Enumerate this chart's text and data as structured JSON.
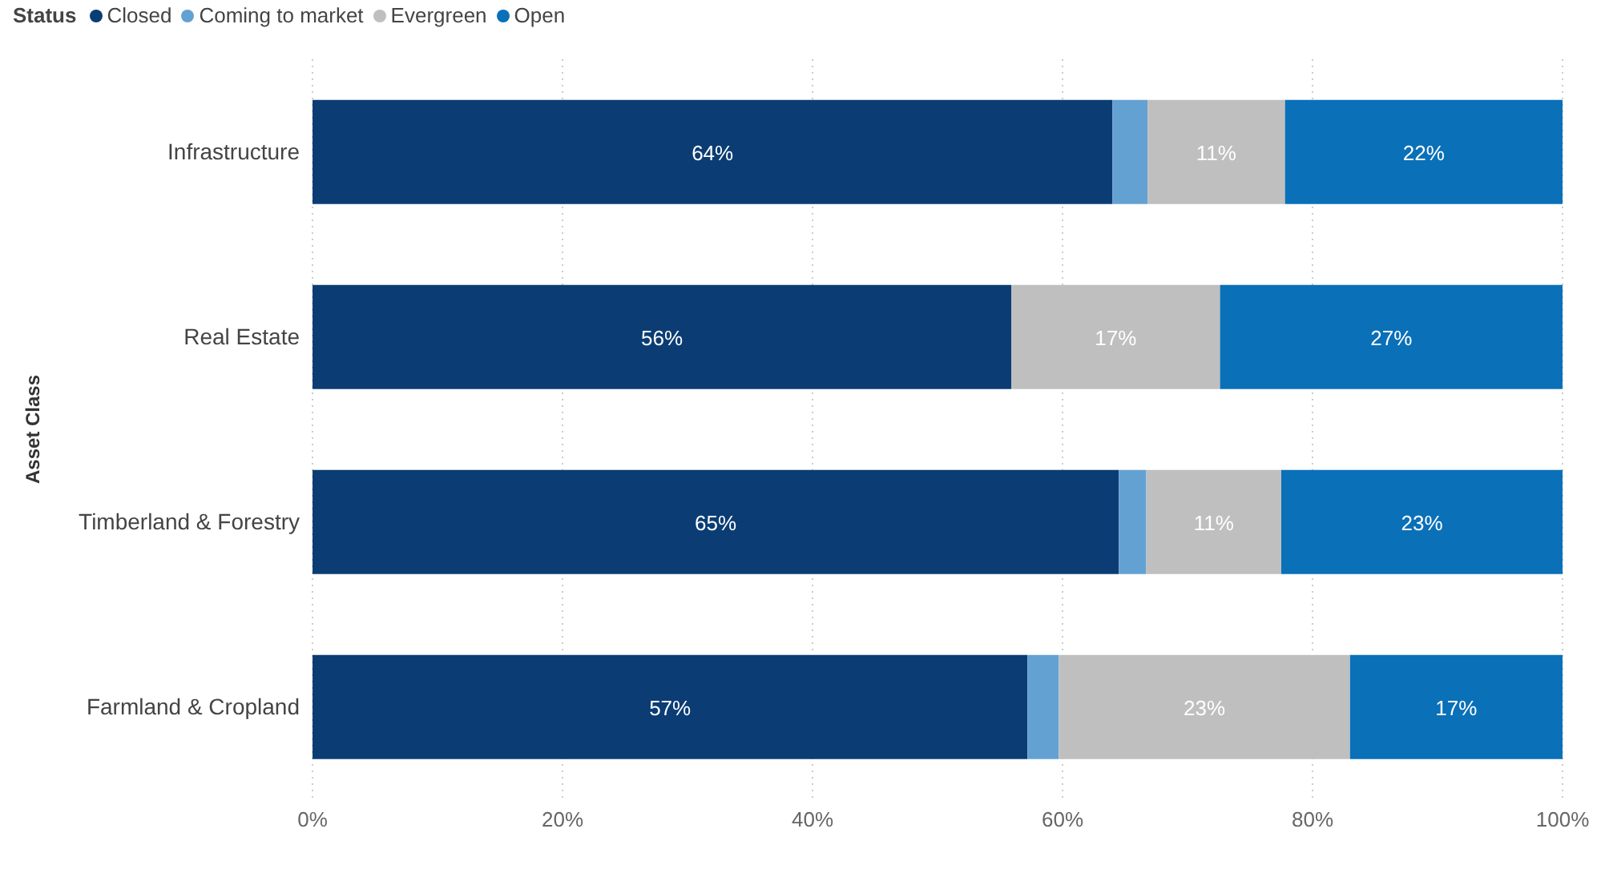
{
  "chart_data": {
    "type": "bar",
    "orientation": "horizontal",
    "stacked": true,
    "legend_title": "Status",
    "ylabel": "Asset Class",
    "categories": [
      "Infrastructure",
      "Real Estate",
      "Timberland & Forestry",
      "Farmland & Cropland"
    ],
    "series": [
      {
        "name": "Closed",
        "color": "#0b3d74",
        "values": [
          64.0,
          55.9,
          64.5,
          57.2
        ],
        "value_labels": [
          "64%",
          "56%",
          "65%",
          "57%"
        ]
      },
      {
        "name": "Coming to market",
        "color": "#64a1d3",
        "values": [
          2.8,
          null,
          2.2,
          2.5
        ],
        "value_labels": [
          null,
          null,
          null,
          null
        ]
      },
      {
        "name": "Evergreen",
        "color": "#bfbfbf",
        "values": [
          11.0,
          16.7,
          10.8,
          23.3
        ],
        "value_labels": [
          "11%",
          "17%",
          "11%",
          "23%"
        ]
      },
      {
        "name": "Open",
        "color": "#0a70b8",
        "values": [
          22.2,
          27.4,
          22.5,
          17.0
        ],
        "value_labels": [
          "22%",
          "27%",
          "23%",
          "17%"
        ]
      }
    ],
    "xlim": [
      0,
      100
    ],
    "xticks": [
      {
        "value": 0,
        "label": "0%"
      },
      {
        "value": 20,
        "label": "20%"
      },
      {
        "value": 40,
        "label": "40%"
      },
      {
        "value": 60,
        "label": "60%"
      },
      {
        "value": 80,
        "label": "80%"
      },
      {
        "value": 100,
        "label": "100%"
      }
    ],
    "grid": "x",
    "legend": "top left"
  }
}
